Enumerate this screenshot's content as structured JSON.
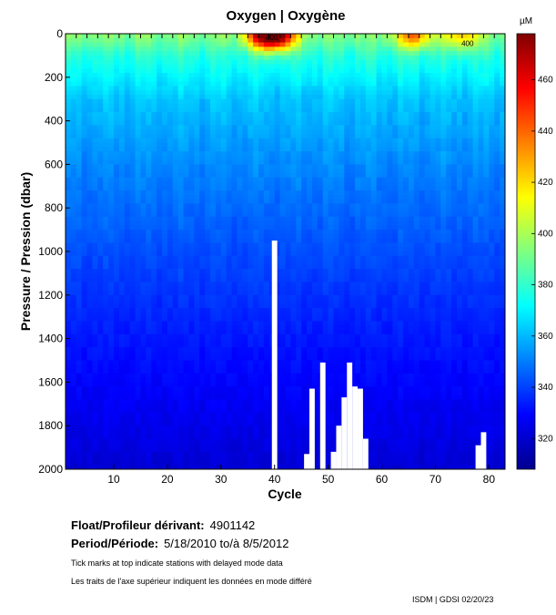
{
  "chart_data": {
    "type": "heatmap",
    "title": "Oxygen | Oxygène",
    "xlabel": "Cycle",
    "ylabel": "Pressure / Pression (dbar)",
    "xlim": [
      1,
      83
    ],
    "ylim": [
      2000,
      0
    ],
    "x_ticks": [
      "10",
      "20",
      "30",
      "40",
      "50",
      "60",
      "70",
      "80"
    ],
    "y_ticks": [
      "0",
      "200",
      "400",
      "600",
      "800",
      "1000",
      "1200",
      "1400",
      "1600",
      "1800",
      "2000"
    ],
    "colorbar": {
      "unit": "µM",
      "range": [
        308,
        478
      ],
      "ticks": [
        "320",
        "340",
        "360",
        "380",
        "400",
        "420",
        "440",
        "460"
      ]
    },
    "contour_label": "400",
    "surface_maxima": [
      {
        "cycle": 38,
        "pressure": 5,
        "value": 470
      },
      {
        "cycle": 41,
        "pressure": 5,
        "value": 465
      },
      {
        "cycle": 66,
        "pressure": 5,
        "value": 440
      },
      {
        "cycle": 75,
        "pressure": 5,
        "value": 425
      }
    ],
    "profile_max_pressure": [
      {
        "cycle": 40,
        "pressure": 950
      },
      {
        "cycle": 46,
        "pressure": 1930
      },
      {
        "cycle": 47,
        "pressure": 1630
      },
      {
        "cycle": 49,
        "pressure": 1510
      },
      {
        "cycle": 51,
        "pressure": 1920
      },
      {
        "cycle": 52,
        "pressure": 1800
      },
      {
        "cycle": 53,
        "pressure": 1670
      },
      {
        "cycle": 54,
        "pressure": 1510
      },
      {
        "cycle": 55,
        "pressure": 1620
      },
      {
        "cycle": 56,
        "pressure": 1630
      },
      {
        "cycle": 57,
        "pressure": 1860
      },
      {
        "cycle": 78,
        "pressure": 1890
      },
      {
        "cycle": 79,
        "pressure": 1830
      }
    ],
    "oxygen_profile_mean": [
      {
        "pressure": 0,
        "value": 395
      },
      {
        "pressure": 100,
        "value": 378
      },
      {
        "pressure": 300,
        "value": 362
      },
      {
        "pressure": 600,
        "value": 352
      },
      {
        "pressure": 1000,
        "value": 342
      },
      {
        "pressure": 1400,
        "value": 333
      },
      {
        "pressure": 2000,
        "value": 322
      }
    ],
    "delayed_mode_cycles": [
      3,
      5,
      7,
      9,
      11,
      13,
      15,
      17,
      19,
      21,
      23,
      25,
      27,
      29,
      31,
      33,
      35,
      37,
      39,
      41,
      43,
      45,
      47,
      49,
      51,
      53,
      55,
      57,
      59,
      61,
      63,
      65,
      67,
      69,
      71,
      73,
      75,
      77,
      79,
      81
    ]
  },
  "info": {
    "float_label": "Float/Profileur dérivant:",
    "float_id": "4901142",
    "period_label": "Period/Période:",
    "period_value": "5/18/2010  to/à  8/5/2012",
    "note_en": "Tick marks at top indicate stations with delayed mode data",
    "note_fr": "Les traits de l'axe supérieur indiquent les données en mode différé",
    "footer": "ISDM | GDSI  02/20/23"
  }
}
